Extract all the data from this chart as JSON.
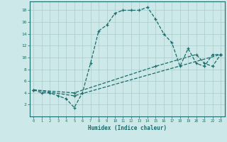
{
  "xlabel": "Humidex (Indice chaleur)",
  "xlim": [
    -0.5,
    23.5
  ],
  "ylim": [
    0,
    19.5
  ],
  "xticks": [
    0,
    1,
    2,
    3,
    4,
    5,
    6,
    7,
    8,
    9,
    10,
    11,
    12,
    13,
    14,
    15,
    16,
    17,
    18,
    19,
    20,
    21,
    22,
    23
  ],
  "yticks": [
    2,
    4,
    6,
    8,
    10,
    12,
    14,
    16,
    18
  ],
  "background_color": "#cce8e8",
  "grid_color": "#aacccc",
  "line_color": "#1a6b6b",
  "line1_x": [
    0,
    1,
    2,
    3,
    4,
    5,
    6,
    7,
    8,
    9,
    10,
    11,
    12,
    13,
    14,
    15,
    16,
    17,
    18,
    19,
    20,
    21,
    22,
    23
  ],
  "line1_y": [
    4.5,
    4.0,
    4.0,
    3.5,
    3.0,
    1.5,
    4.0,
    9.0,
    14.5,
    15.5,
    17.5,
    18.0,
    18.0,
    18.0,
    18.5,
    16.5,
    14.0,
    12.5,
    8.5,
    11.5,
    9.0,
    8.5,
    10.5,
    10.5
  ],
  "line2_x": [
    0,
    5,
    23
  ],
  "line2_y": [
    4.5,
    3.5,
    10.5
  ],
  "line3_x": [
    0,
    5,
    15,
    20,
    21,
    22,
    23
  ],
  "line3_y": [
    4.5,
    4.0,
    8.5,
    10.5,
    9.0,
    8.5,
    10.5
  ]
}
